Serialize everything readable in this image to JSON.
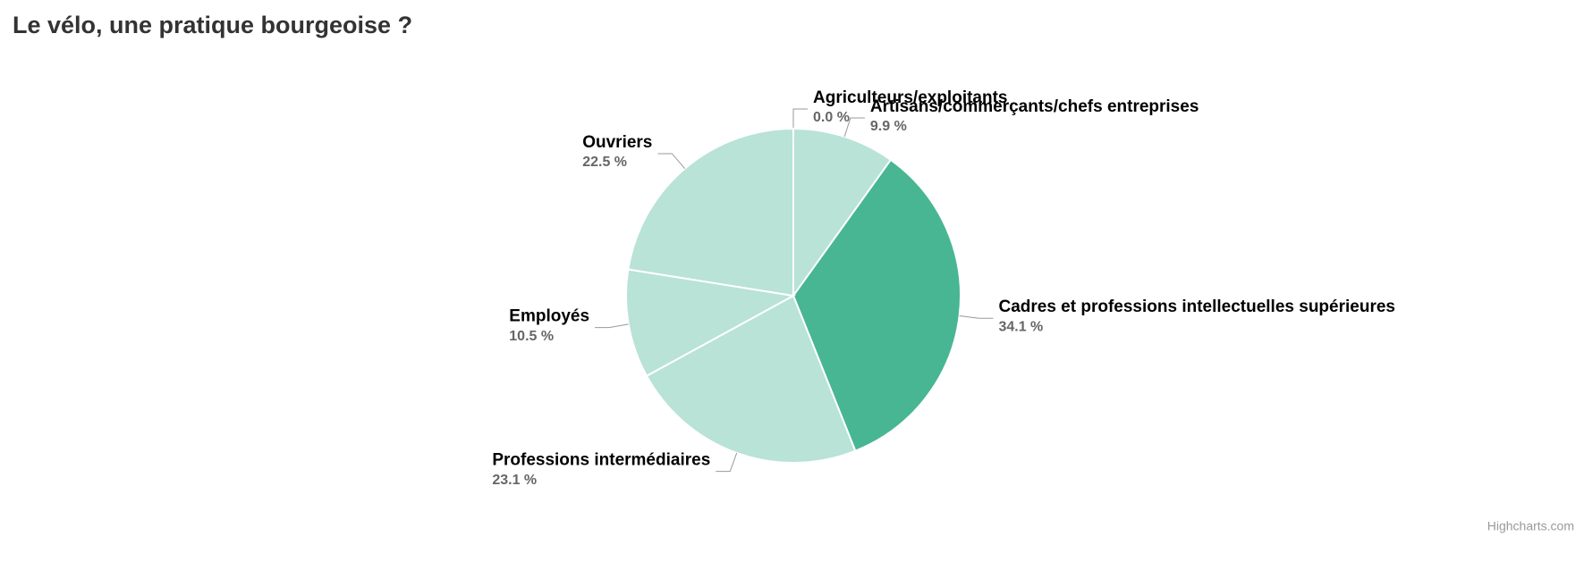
{
  "chart_data": {
    "type": "pie",
    "title": "Le vélo, une pratique bourgeoise ?",
    "categories": [
      "Agriculteurs/exploitants",
      "Artisans/commerçants/chefs entreprises",
      "Cadres et professions intellectuelles supérieures",
      "Professions intermédiaires",
      "Employés",
      "Ouvriers"
    ],
    "values": [
      0.0,
      9.9,
      34.1,
      23.1,
      10.5,
      22.5
    ],
    "value_labels": [
      "0.0 %",
      "9.9 %",
      "34.1 %",
      "23.1 %",
      "10.5 %",
      "22.5 %"
    ],
    "colors": [
      "#b8e3d6",
      "#b8e3d6",
      "#48b692",
      "#b8e3d6",
      "#b8e3d6",
      "#b8e3d6"
    ],
    "credits": "Highcharts.com"
  }
}
